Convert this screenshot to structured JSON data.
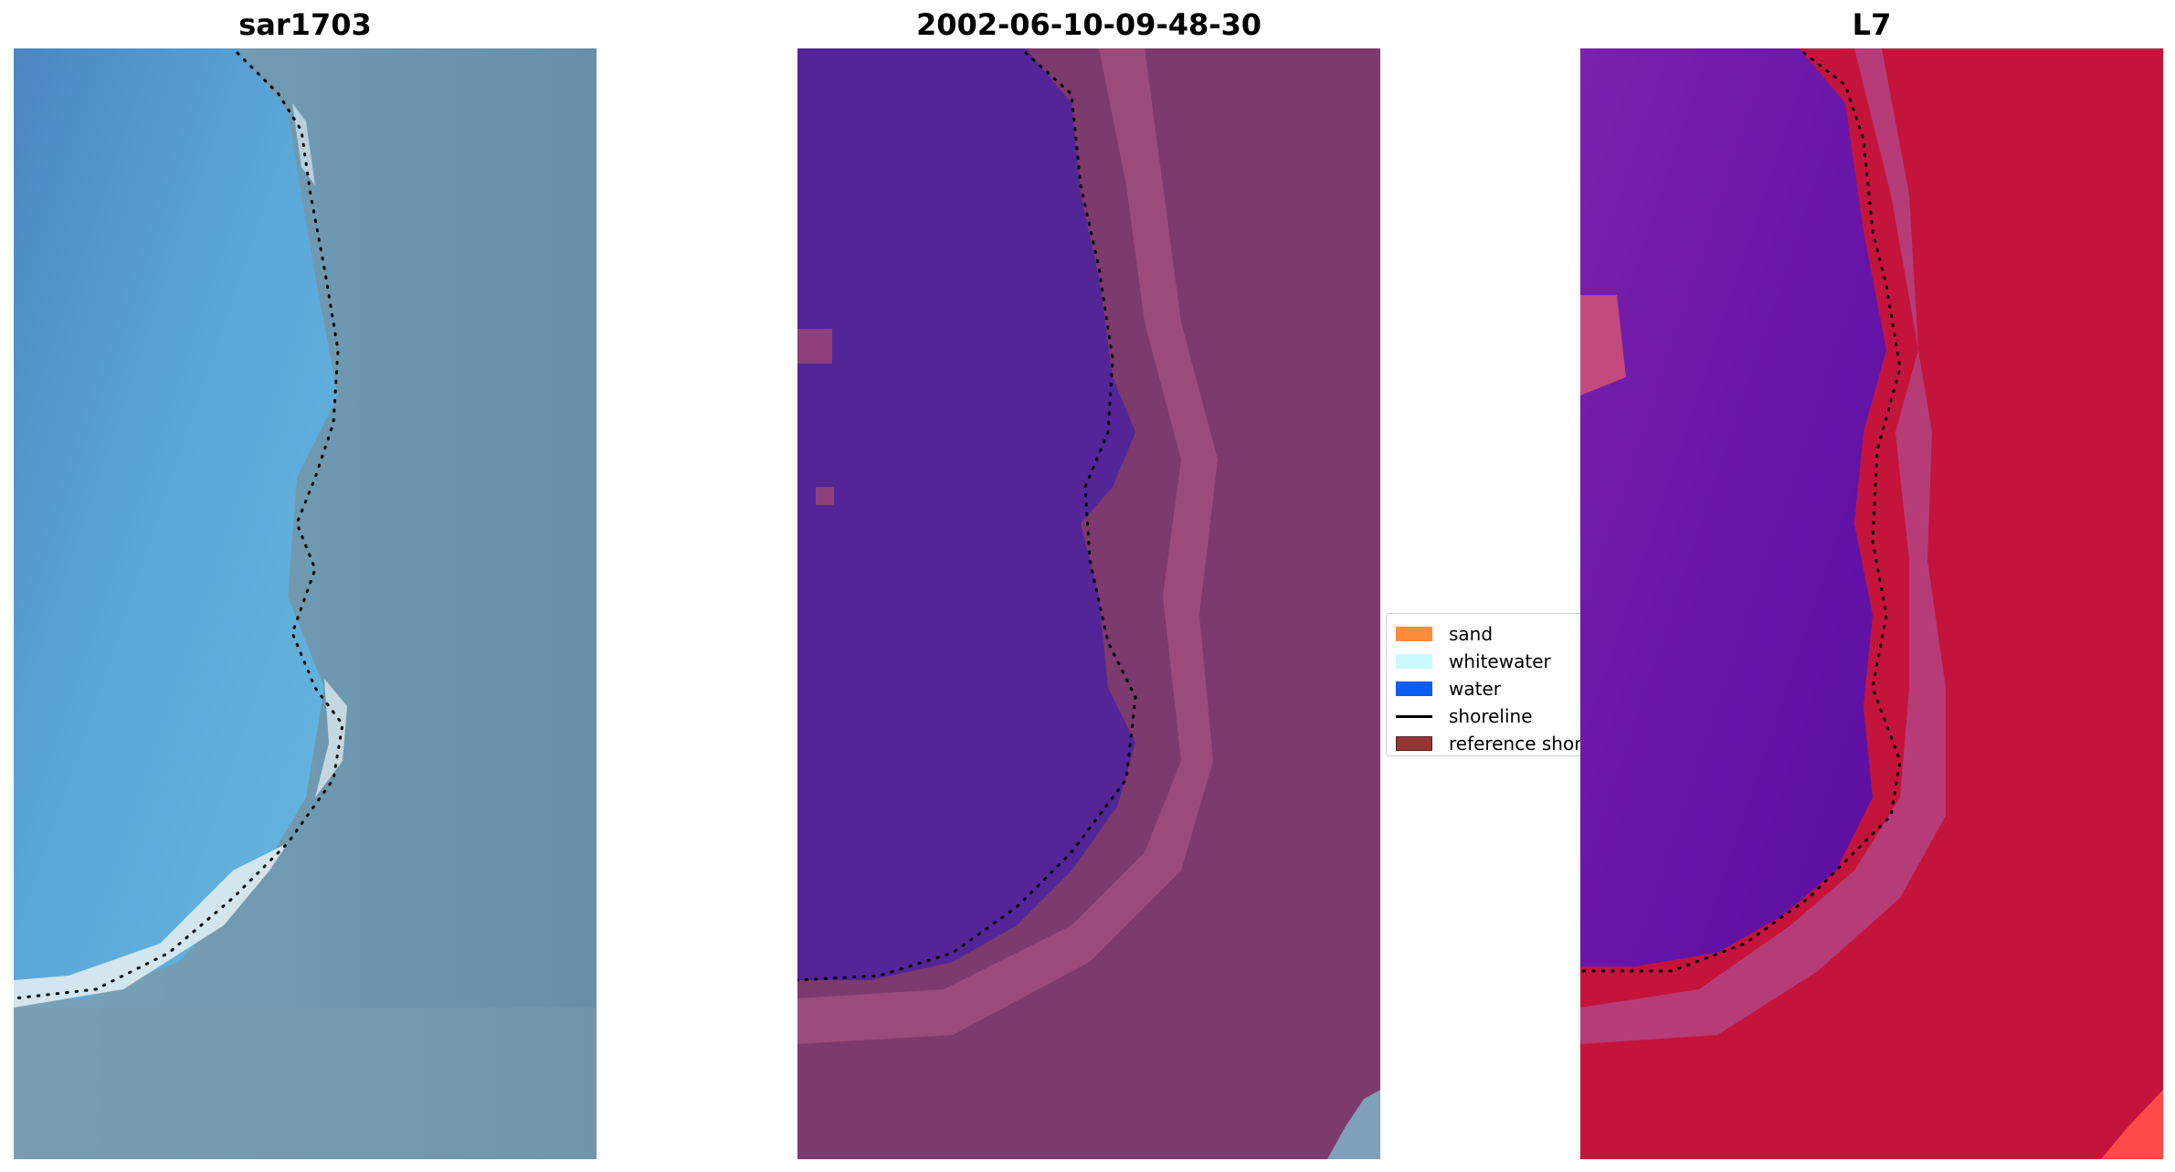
{
  "panels": [
    {
      "title": "sar1703"
    },
    {
      "title": "2002-06-10-09-48-30"
    },
    {
      "title": "L7"
    }
  ],
  "legend": {
    "items": [
      {
        "label": "sand",
        "color": "#ff8c3a"
      },
      {
        "label": "whitewater",
        "color": "#c8fbff"
      },
      {
        "label": "water",
        "color": "#0a5ef0"
      },
      {
        "label": "shoreline",
        "color": "#000000"
      },
      {
        "label": "reference shoreline",
        "color": "#943636"
      }
    ]
  },
  "colors": {
    "rgb_water": "#4f93cf",
    "rgb_land": "#6d92a6",
    "rgb_surf": "#e8f2f5",
    "class_water": "#532597",
    "class_land": "#7e3a6e",
    "mndwi_water": "#6b18a3",
    "mndwi_land": "#c0163f"
  }
}
